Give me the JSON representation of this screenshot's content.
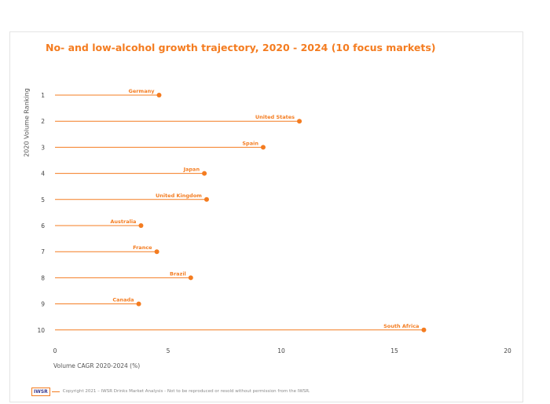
{
  "chart_data": {
    "type": "dot-line",
    "title": "No- and low-alcohol growth trajectory, 2020 - 2024 (10 focus markets)",
    "ylabel": "2020 Volume Ranking",
    "xlabel": "Volume CAGR 2020-2024 (%)",
    "xlim": [
      0,
      20
    ],
    "xticks": [
      0,
      5,
      10,
      15,
      20
    ],
    "grid": false,
    "series": [
      {
        "rank": "1",
        "country": "Germany",
        "value": 4.6
      },
      {
        "rank": "2",
        "country": "United States",
        "value": 10.8
      },
      {
        "rank": "3",
        "country": "Spain",
        "value": 9.2
      },
      {
        "rank": "4",
        "country": "Japan",
        "value": 6.6
      },
      {
        "rank": "5",
        "country": "United Kingdom",
        "value": 6.7
      },
      {
        "rank": "6",
        "country": "Australia",
        "value": 3.8
      },
      {
        "rank": "7",
        "country": "France",
        "value": 4.5
      },
      {
        "rank": "8",
        "country": "Brazil",
        "value": 6.0
      },
      {
        "rank": "9",
        "country": "Canada",
        "value": 3.7
      },
      {
        "rank": "10",
        "country": "South Africa",
        "value": 16.3
      }
    ],
    "color": "#f47c20"
  },
  "footer": {
    "logo": "IWSR",
    "copyright": "Copyright 2021 – IWSR Drinks Market Analysis - Not to be reproduced or resold without permission from the IWSR."
  }
}
